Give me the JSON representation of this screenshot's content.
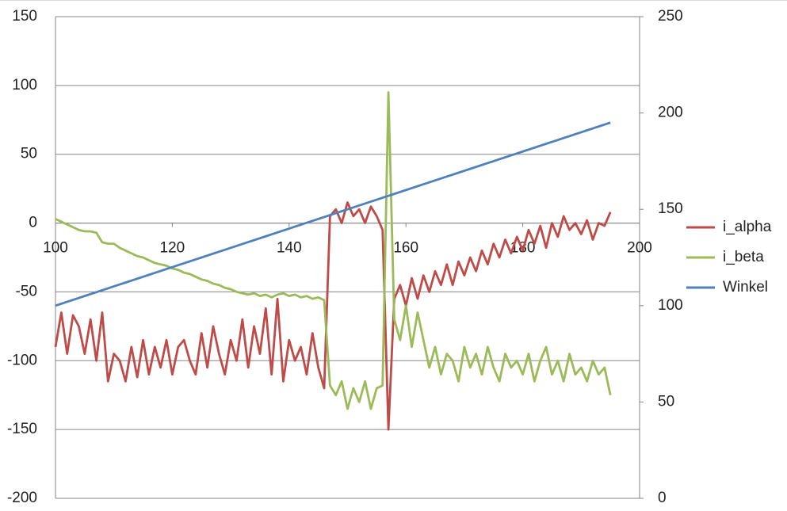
{
  "chart_data": {
    "type": "line",
    "x": [
      100,
      101,
      102,
      103,
      104,
      105,
      106,
      107,
      108,
      109,
      110,
      111,
      112,
      113,
      114,
      115,
      116,
      117,
      118,
      119,
      120,
      121,
      122,
      123,
      124,
      125,
      126,
      127,
      128,
      129,
      130,
      131,
      132,
      133,
      134,
      135,
      136,
      137,
      138,
      139,
      140,
      141,
      142,
      143,
      144,
      145,
      146,
      147,
      148,
      149,
      150,
      151,
      152,
      153,
      154,
      155,
      156,
      157,
      158,
      159,
      160,
      161,
      162,
      163,
      164,
      165,
      166,
      167,
      168,
      169,
      170,
      171,
      172,
      173,
      174,
      175,
      176,
      177,
      178,
      179,
      180,
      181,
      182,
      183,
      184,
      185,
      186,
      187,
      188,
      189,
      190,
      191,
      192,
      193,
      194,
      195
    ],
    "series": [
      {
        "name": "i_alpha",
        "color": "#be4b48",
        "values": [
          -90,
          -65,
          -95,
          -67,
          -75,
          -95,
          -70,
          -100,
          -65,
          -115,
          -95,
          -100,
          -115,
          -90,
          -112,
          -85,
          -110,
          -90,
          -105,
          -85,
          -110,
          -90,
          -85,
          -100,
          -110,
          -80,
          -105,
          -75,
          -95,
          -110,
          -85,
          -100,
          -70,
          -105,
          -75,
          -95,
          -62,
          -110,
          -55,
          -115,
          -85,
          -100,
          -90,
          -110,
          -80,
          -105,
          -120,
          5,
          10,
          0,
          15,
          5,
          10,
          0,
          12,
          5,
          -5,
          -150,
          -55,
          -45,
          -60,
          -40,
          -55,
          -38,
          -50,
          -35,
          -45,
          -30,
          -45,
          -28,
          -38,
          -25,
          -35,
          -20,
          -30,
          -15,
          -25,
          -12,
          -22,
          -10,
          -20,
          -5,
          -15,
          -2,
          -18,
          0,
          -10,
          5,
          -5,
          0,
          -8,
          2,
          -12,
          0,
          -2,
          8
        ]
      },
      {
        "name": "i_beta",
        "color": "#9bbb59",
        "values": [
          3,
          1,
          -1,
          -3,
          -5,
          -6,
          -6,
          -7,
          -14,
          -15,
          -15,
          -18,
          -20,
          -22,
          -24,
          -25,
          -27,
          -29,
          -30,
          -31,
          -33,
          -34,
          -36,
          -37,
          -39,
          -41,
          -42,
          -44,
          -45,
          -47,
          -48,
          -50,
          -51,
          -52,
          -51,
          -53,
          -52,
          -54,
          -52,
          -51,
          -53,
          -52,
          -54,
          -53,
          -55,
          -54,
          -56,
          -118,
          -125,
          -115,
          -135,
          -120,
          -130,
          -115,
          -135,
          -120,
          -118,
          95,
          -70,
          -85,
          -60,
          -90,
          -65,
          -85,
          -105,
          -90,
          -110,
          -95,
          -100,
          -115,
          -90,
          -105,
          -95,
          -110,
          -90,
          -105,
          -115,
          -95,
          -105,
          -100,
          -110,
          -95,
          -115,
          -100,
          -90,
          -110,
          -100,
          -115,
          -95,
          -110,
          -105,
          -115,
          -100,
          -110,
          -105,
          -125
        ]
      },
      {
        "name": "Winkel",
        "color": "#4f81bd",
        "axis": "y2",
        "values": [
          100,
          101,
          102,
          103,
          104,
          105,
          106,
          107,
          108,
          109,
          110,
          111,
          112,
          113,
          114,
          115,
          116,
          117,
          118,
          119,
          120,
          121,
          122,
          123,
          124,
          125,
          126,
          127,
          128,
          129,
          130,
          131,
          132,
          133,
          134,
          135,
          136,
          137,
          138,
          139,
          140,
          141,
          142,
          143,
          144,
          145,
          146,
          147,
          148,
          149,
          150,
          151,
          152,
          153,
          154,
          155,
          156,
          157,
          158,
          159,
          160,
          161,
          162,
          163,
          164,
          165,
          166,
          167,
          168,
          169,
          170,
          171,
          172,
          173,
          174,
          175,
          176,
          177,
          178,
          179,
          180,
          181,
          182,
          183,
          184,
          185,
          186,
          187,
          188,
          189,
          190,
          191,
          192,
          193,
          194,
          195
        ]
      }
    ],
    "xlim": [
      100,
      200
    ],
    "xticks": [
      100,
      120,
      140,
      160,
      180,
      200
    ],
    "ylim": [
      -200,
      150
    ],
    "yticks": [
      -200,
      -150,
      -100,
      -50,
      0,
      50,
      100,
      150
    ],
    "y2lim": [
      0,
      250
    ],
    "y2ticks": [
      0,
      50,
      100,
      150,
      200,
      250
    ],
    "grid": true,
    "legend": "right"
  }
}
